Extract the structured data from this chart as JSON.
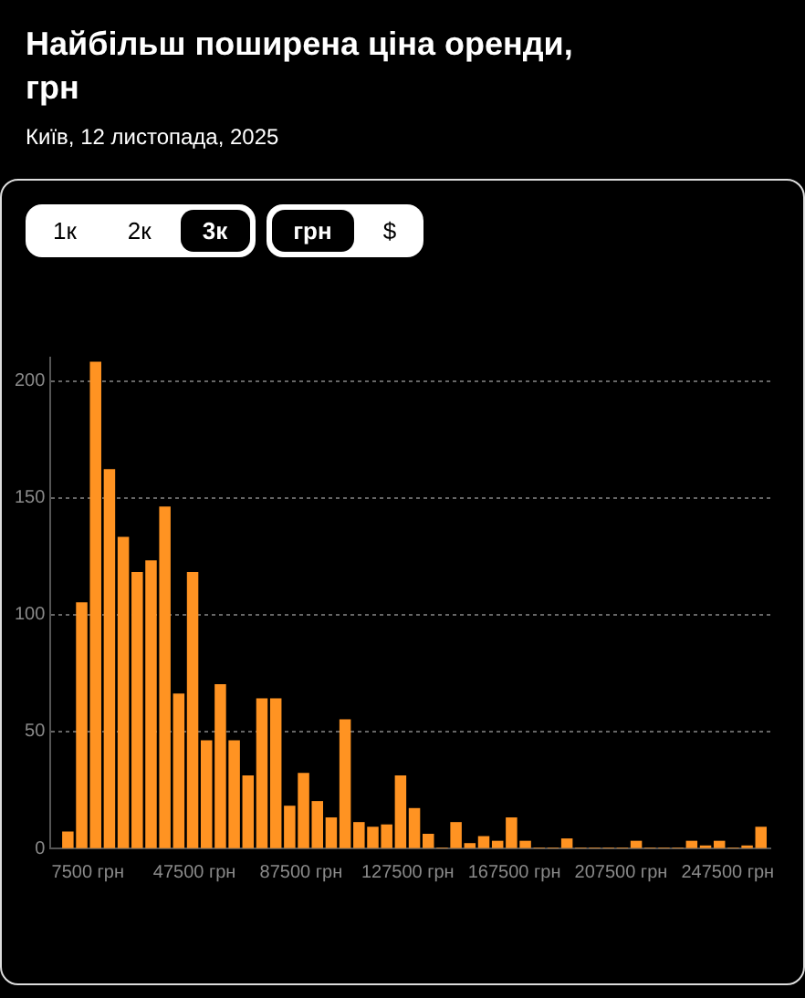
{
  "chart_data": {
    "type": "histogram",
    "title": "Найбільш поширена ціна оренди, грн",
    "subtitle": "Київ, 12 листопада, 2025",
    "annotations": [
      "1к",
      "2к",
      "3к",
      "грн",
      "$"
    ],
    "bins": [
      -2600,
      2600,
      7800,
      13000,
      18200,
      23400,
      28600,
      33800,
      39000,
      44200,
      49400,
      54600,
      59800,
      65000,
      70200,
      75400,
      80600,
      85800,
      91000,
      96200,
      101400,
      106600,
      111800,
      117000,
      122200,
      127400,
      132600,
      137800,
      143000,
      148200,
      153400,
      158600,
      163800,
      169000,
      174200,
      179400,
      184600,
      189800,
      195000,
      200200,
      205400,
      210600,
      215800,
      221000,
      226200,
      231400,
      236600,
      241800,
      247000,
      252200,
      257400,
      262600
    ],
    "values": [
      7,
      105,
      208,
      162,
      133,
      118,
      123,
      146,
      66,
      118,
      46,
      70,
      46,
      31,
      64,
      64,
      18,
      32,
      20,
      13,
      55,
      11,
      9,
      10,
      31,
      17,
      6,
      0,
      11,
      2,
      5,
      3,
      13,
      3,
      0,
      0,
      4,
      0,
      0,
      0,
      0,
      3,
      0,
      0,
      0,
      3,
      1,
      3,
      0,
      1,
      9
    ],
    "color": "#ff9322",
    "xlim": [
      -6500,
      263500
    ],
    "xticks": [
      {
        "value": 7500,
        "label": "7500 грн"
      },
      {
        "value": 47500,
        "label": "47500 грн"
      },
      {
        "value": 87500,
        "label": "87500 грн"
      },
      {
        "value": 127500,
        "label": "127500 грн"
      },
      {
        "value": 167500,
        "label": "167500 грн"
      },
      {
        "value": 207500,
        "label": "207500 грн"
      },
      {
        "value": 247500,
        "label": "247500 грн"
      }
    ],
    "ylim": [
      0,
      210
    ],
    "yticks": [
      0,
      50,
      100,
      150,
      200
    ],
    "grid": "y",
    "legend": false
  }
}
